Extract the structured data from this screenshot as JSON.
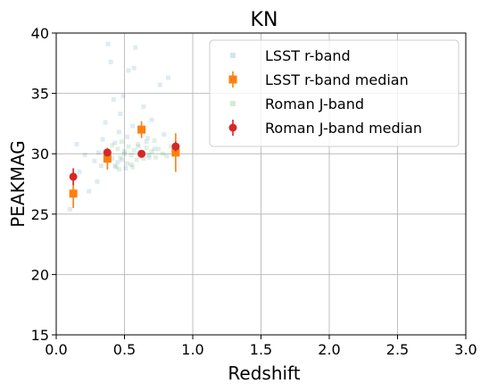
{
  "chart_data": {
    "type": "scatter",
    "title": "KN",
    "xlabel": "Redshift",
    "ylabel": "PEAKMAG",
    "xlim": [
      0.0,
      3.0
    ],
    "ylim": [
      15,
      40
    ],
    "xticks": [
      "0.0",
      "0.5",
      "1.0",
      "1.5",
      "2.0",
      "2.5",
      "3.0"
    ],
    "yticks": [
      "15",
      "20",
      "25",
      "30",
      "35",
      "40"
    ],
    "grid": true,
    "legend_position": "top-right",
    "series": [
      {
        "name": "LSST r-band",
        "kind": "points",
        "marker": "square",
        "color": "#1f77b4",
        "points": [
          [
            0.15,
            30.8
          ],
          [
            0.17,
            28.5
          ],
          [
            0.24,
            26.9
          ],
          [
            0.28,
            29.4
          ],
          [
            0.3,
            27.7
          ],
          [
            0.31,
            30.1
          ],
          [
            0.33,
            29.0
          ],
          [
            0.34,
            31.2
          ],
          [
            0.36,
            32.6
          ],
          [
            0.37,
            30.3
          ],
          [
            0.38,
            39.1
          ],
          [
            0.4,
            37.6
          ],
          [
            0.41,
            29.6
          ],
          [
            0.42,
            34.5
          ],
          [
            0.43,
            30.9
          ],
          [
            0.44,
            28.9
          ],
          [
            0.45,
            29.3
          ],
          [
            0.46,
            31.8
          ],
          [
            0.47,
            33.3
          ],
          [
            0.48,
            29.5
          ],
          [
            0.49,
            34.8
          ],
          [
            0.5,
            30.2
          ],
          [
            0.51,
            28.8
          ],
          [
            0.52,
            31.4
          ],
          [
            0.53,
            36.9
          ],
          [
            0.55,
            29.1
          ],
          [
            0.56,
            32.3
          ],
          [
            0.57,
            37.1
          ],
          [
            0.58,
            38.8
          ],
          [
            0.6,
            30.6
          ],
          [
            0.62,
            29.8
          ],
          [
            0.64,
            33.9
          ],
          [
            0.66,
            31.0
          ],
          [
            0.68,
            29.7
          ],
          [
            0.7,
            32.8
          ],
          [
            0.72,
            30.4
          ],
          [
            0.76,
            35.7
          ],
          [
            0.79,
            31.6
          ],
          [
            0.82,
            36.3
          ],
          [
            0.86,
            30.3
          ],
          [
            0.1,
            25.4
          ],
          [
            0.21,
            29.9
          ]
        ]
      },
      {
        "name": "LSST r-band median",
        "kind": "errorbar",
        "marker": "square",
        "color": "#ff7f0e",
        "points": [
          {
            "x": 0.125,
            "y": 26.7,
            "err": 1.2
          },
          {
            "x": 0.375,
            "y": 29.6,
            "err": 0.9
          },
          {
            "x": 0.625,
            "y": 32.0,
            "err": 0.7
          },
          {
            "x": 0.875,
            "y": 30.1,
            "err": 1.6
          }
        ]
      },
      {
        "name": "Roman J-band",
        "kind": "points",
        "marker": "square",
        "color": "#2ca02c",
        "points": [
          [
            0.35,
            30.2
          ],
          [
            0.38,
            29.4
          ],
          [
            0.41,
            30.7
          ],
          [
            0.43,
            29.0
          ],
          [
            0.45,
            30.4
          ],
          [
            0.47,
            29.7
          ],
          [
            0.48,
            31.0
          ],
          [
            0.5,
            30.0
          ],
          [
            0.52,
            29.2
          ],
          [
            0.53,
            30.6
          ],
          [
            0.55,
            29.9
          ],
          [
            0.57,
            30.3
          ],
          [
            0.59,
            29.5
          ],
          [
            0.6,
            30.8
          ],
          [
            0.62,
            30.1
          ],
          [
            0.64,
            29.6
          ],
          [
            0.66,
            30.5
          ],
          [
            0.68,
            29.9
          ],
          [
            0.7,
            30.2
          ],
          [
            0.73,
            29.7
          ],
          [
            0.75,
            30.4
          ],
          [
            0.78,
            30.0
          ],
          [
            0.81,
            29.8
          ],
          [
            0.84,
            30.6
          ],
          [
            0.46,
            28.7
          ],
          [
            0.56,
            28.9
          ],
          [
            0.67,
            31.3
          ],
          [
            0.72,
            31.1
          ]
        ]
      },
      {
        "name": "Roman J-band median",
        "kind": "errorbar",
        "marker": "circle",
        "color": "#d62728",
        "points": [
          {
            "x": 0.125,
            "y": 28.1,
            "err": 0.7
          },
          {
            "x": 0.375,
            "y": 30.1,
            "err": 0.3
          },
          {
            "x": 0.625,
            "y": 30.0,
            "err": 0.2
          },
          {
            "x": 0.875,
            "y": 30.6,
            "err": 0.4
          }
        ]
      }
    ]
  }
}
